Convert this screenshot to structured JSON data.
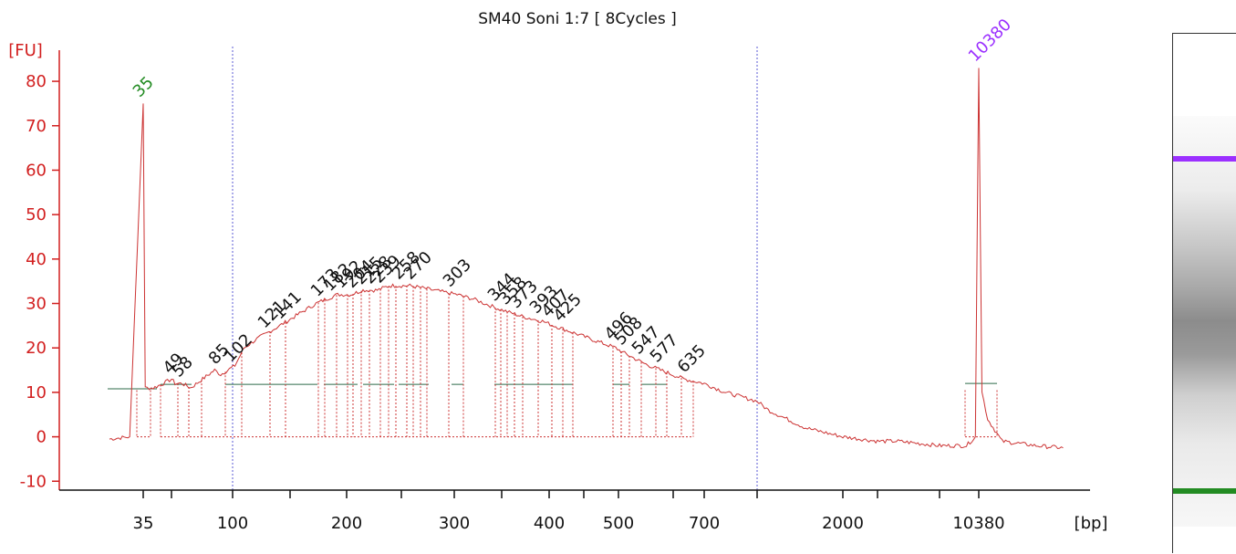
{
  "chart_data": {
    "type": "line",
    "title": "SM40 Soni 1:7  [ 8Cycles ]",
    "ylabel": "[FU]",
    "xlabel": "[bp]",
    "ylim": [
      -12,
      87
    ],
    "yticks": [
      -10,
      0,
      10,
      20,
      30,
      40,
      50,
      60,
      70,
      80
    ],
    "xticks": [
      "35",
      "100",
      "200",
      "300",
      "400",
      "500",
      "700",
      "2000",
      "10380"
    ],
    "x_scale": "categorical ladder (non-linear bp axis)",
    "grid": false,
    "colors": {
      "trace": "#cc3333",
      "axis": "#d21f1f",
      "baseline": "#2e6b4a",
      "lower_marker": "#228b22",
      "upper_marker": "#9b30ff",
      "region": "#5a5ad6"
    },
    "markers": [
      {
        "label": "35",
        "height": 75,
        "color": "#228b22"
      },
      {
        "label": "10380",
        "height": 83,
        "color": "#9b30ff"
      }
    ],
    "peak_labels": [
      "49",
      "58",
      "85",
      "102",
      "121",
      "141",
      "173",
      "182",
      "192",
      "204",
      "215",
      "228",
      "239",
      "258",
      "270",
      "303",
      "344",
      "358",
      "373",
      "393",
      "407",
      "425",
      "496",
      "508",
      "547",
      "577",
      "635"
    ],
    "series": [
      {
        "name": "",
        "x": [
          "30",
          "33",
          "35",
          "36",
          "40",
          "45",
          "49",
          "52",
          "58",
          "65",
          "75",
          "85",
          "90",
          "102",
          "110",
          "121",
          "141",
          "160",
          "173",
          "182",
          "192",
          "204",
          "215",
          "228",
          "239",
          "250",
          "258",
          "270",
          "280",
          "303",
          "320",
          "344",
          "358",
          "373",
          "393",
          "407",
          "425",
          "460",
          "496",
          "508",
          "547",
          "577",
          "635",
          "700",
          "760",
          "850",
          "1000",
          "1500",
          "2000",
          "2500",
          "3000",
          "4000",
          "6000",
          "9000",
          "10000",
          "10380",
          "10600",
          "11000",
          "12000",
          "15000",
          "20000"
        ],
        "values": [
          -0.5,
          0,
          75,
          11,
          11,
          12,
          13,
          12,
          12,
          11,
          13,
          15,
          14,
          16,
          20,
          22,
          25,
          28,
          30,
          31,
          32,
          32,
          33,
          33,
          34,
          34,
          34,
          33.5,
          33,
          32,
          31,
          29,
          28,
          27,
          26,
          25,
          24,
          22,
          20,
          19,
          16.5,
          15,
          13,
          12,
          10,
          8,
          6,
          2,
          0,
          -0.5,
          -1,
          -1,
          -2,
          -2,
          0,
          83,
          10,
          4,
          -1,
          -2,
          -2.5
        ]
      }
    ],
    "gel": {
      "upper_band_color": "#9b30ff",
      "lower_band_color": "#228b22"
    }
  }
}
